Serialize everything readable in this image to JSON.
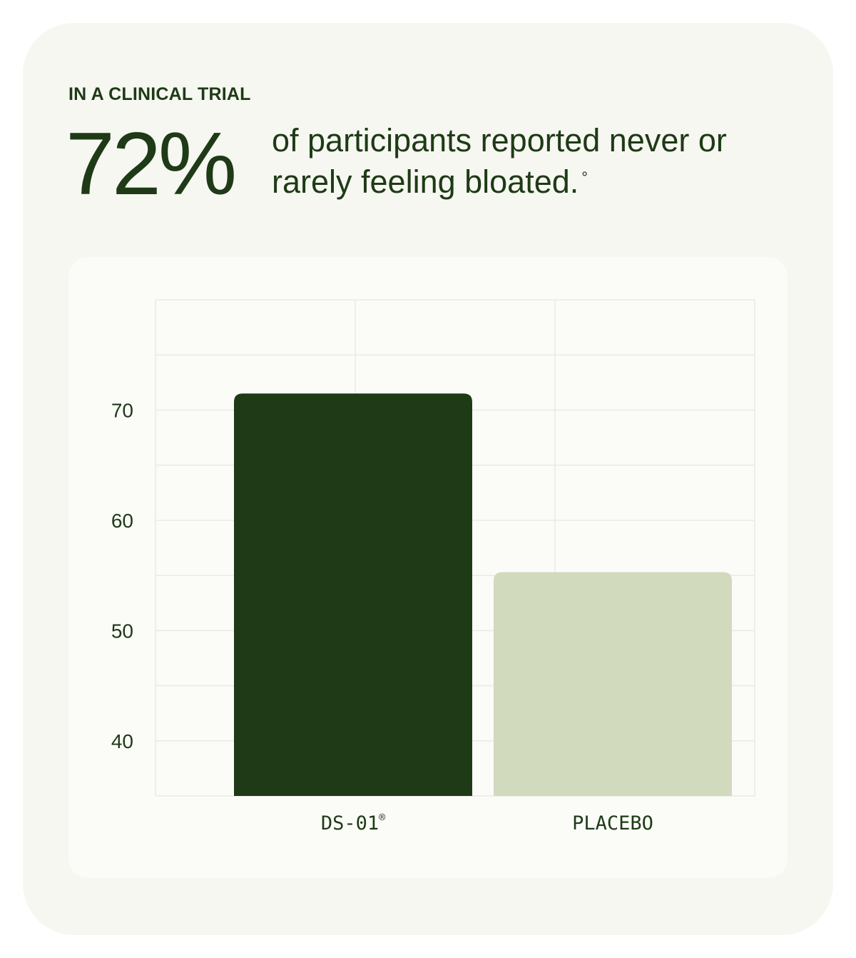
{
  "header": {
    "eyebrow": "IN A CLINICAL TRIAL",
    "stat": "72%",
    "headline": "of participants reported never or rarely feeling bloated.",
    "footnote_mark": "°"
  },
  "colors": {
    "primary": "#1e3a16",
    "placebo": "#d1dabd",
    "card_background": "#f6f7f1",
    "panel_background": "#fbfbf8",
    "grid": "#e9ebe4"
  },
  "chart_data": {
    "type": "bar",
    "categories": [
      "DS-01®",
      "PLACEBO"
    ],
    "values": [
      71.5,
      55.3
    ],
    "yticks": [
      40,
      50,
      60,
      70
    ],
    "ylim": [
      35,
      80
    ],
    "grid": true,
    "title": "",
    "xlabel": "",
    "ylabel": ""
  }
}
